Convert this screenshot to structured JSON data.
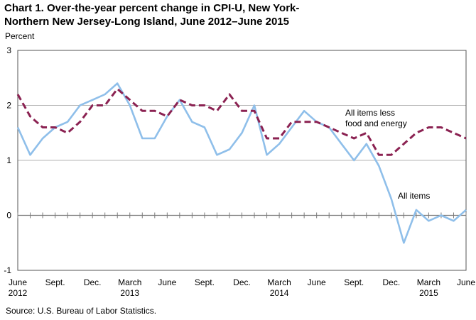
{
  "chart_data": {
    "type": "line",
    "title_line1": "Chart 1.  Over-the-year percent change in CPI-U, New York-",
    "title_line2": "Northern New Jersey-Long Island, June 2012–June 2015",
    "ylabel": "Percent",
    "ylim": [
      -1,
      3
    ],
    "yticks": [
      -1,
      0,
      1,
      2,
      3
    ],
    "x_tick_labels": [
      {
        "index": 0,
        "line1": "June",
        "line2": "2012"
      },
      {
        "index": 3,
        "line1": "Sept.",
        "line2": ""
      },
      {
        "index": 6,
        "line1": "Dec.",
        "line2": ""
      },
      {
        "index": 9,
        "line1": "March",
        "line2": "2013"
      },
      {
        "index": 12,
        "line1": "June",
        "line2": ""
      },
      {
        "index": 15,
        "line1": "Sept.",
        "line2": ""
      },
      {
        "index": 18,
        "line1": "Dec.",
        "line2": ""
      },
      {
        "index": 21,
        "line1": "March",
        "line2": "2014"
      },
      {
        "index": 24,
        "line1": "June",
        "line2": ""
      },
      {
        "index": 27,
        "line1": "Sept.",
        "line2": ""
      },
      {
        "index": 30,
        "line1": "Dec.",
        "line2": ""
      },
      {
        "index": 33,
        "line1": "March",
        "line2": "2015"
      },
      {
        "index": 36,
        "line1": "June",
        "line2": ""
      }
    ],
    "series": [
      {
        "name": "All items",
        "color": "#8fbfea",
        "style": "solid",
        "values": [
          1.6,
          1.1,
          1.4,
          1.6,
          1.7,
          2.0,
          2.1,
          2.2,
          2.4,
          2.0,
          1.4,
          1.4,
          1.8,
          2.1,
          1.7,
          1.6,
          1.1,
          1.2,
          1.5,
          2.0,
          1.1,
          1.3,
          1.6,
          1.9,
          1.7,
          1.6,
          1.3,
          1.0,
          1.3,
          0.9,
          0.3,
          -0.5,
          0.1,
          -0.1,
          0.0,
          -0.1,
          0.1
        ]
      },
      {
        "name": "All items less food and energy",
        "color": "#8b2252",
        "style": "dashed",
        "values": [
          2.2,
          1.8,
          1.6,
          1.6,
          1.5,
          1.7,
          2.0,
          2.0,
          2.3,
          2.1,
          1.9,
          1.9,
          1.8,
          2.1,
          2.0,
          2.0,
          1.9,
          2.2,
          1.9,
          1.9,
          1.4,
          1.4,
          1.7,
          1.7,
          1.7,
          1.6,
          1.5,
          1.4,
          1.5,
          1.1,
          1.1,
          1.3,
          1.5,
          1.6,
          1.6,
          1.5,
          1.4
        ]
      }
    ],
    "annotations": {
      "core_line1": "All items less",
      "core_line2": "food and energy",
      "all_items": "All items"
    },
    "source": "Source: U.S. Bureau of Labor Statistics."
  }
}
